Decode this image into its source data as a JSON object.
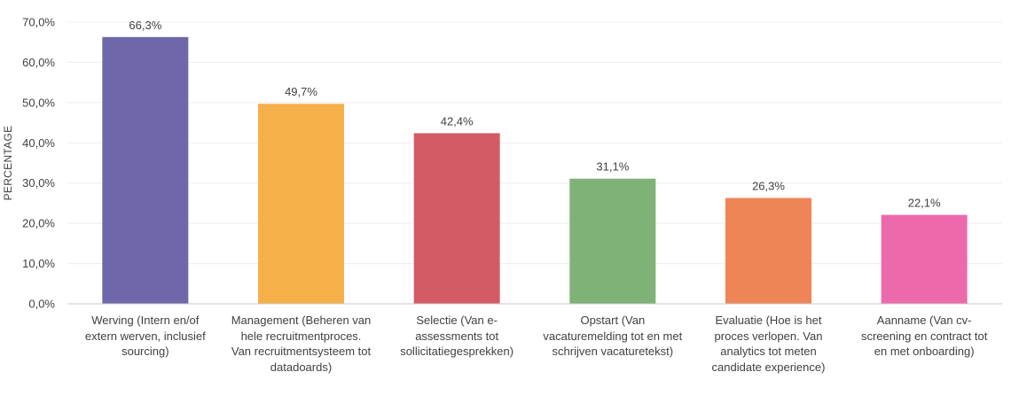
{
  "chart_data": {
    "type": "bar",
    "ylabel": "PERCENTAGE",
    "xlabel": "",
    "ylim": [
      0,
      70
    ],
    "ytick_step": 10,
    "ytick_labels": [
      "0,0%",
      "10,0%",
      "20,0%",
      "30,0%",
      "40,0%",
      "50,0%",
      "60,0%",
      "70,0%"
    ],
    "grid": true,
    "legend": "none",
    "categories": [
      "Werving (Intern en/of extern werven, inclusief sourcing)",
      "Management (Beheren van hele recruitmentproces. Van recruitmentsysteem tot datadoards)",
      "Selectie (Van e-assessments tot sollicitatiegesprekken)",
      "Opstart (Van vacaturemelding tot en met schrijven vacaturetekst)",
      "Evaluatie (Hoe is het proces verlopen. Van analytics tot meten candidate experience)",
      "Aanname (Van cv-screening en contract tot en met onboarding)"
    ],
    "values": [
      66.3,
      49.7,
      42.4,
      31.1,
      26.3,
      22.1
    ],
    "value_labels": [
      "66,3%",
      "49,7%",
      "42,4%",
      "31,1%",
      "26,3%",
      "22,1%"
    ],
    "colors": [
      "#6e67a9",
      "#f5b04a",
      "#d35b66",
      "#7fb276",
      "#ef8556",
      "#ec6aab"
    ]
  }
}
